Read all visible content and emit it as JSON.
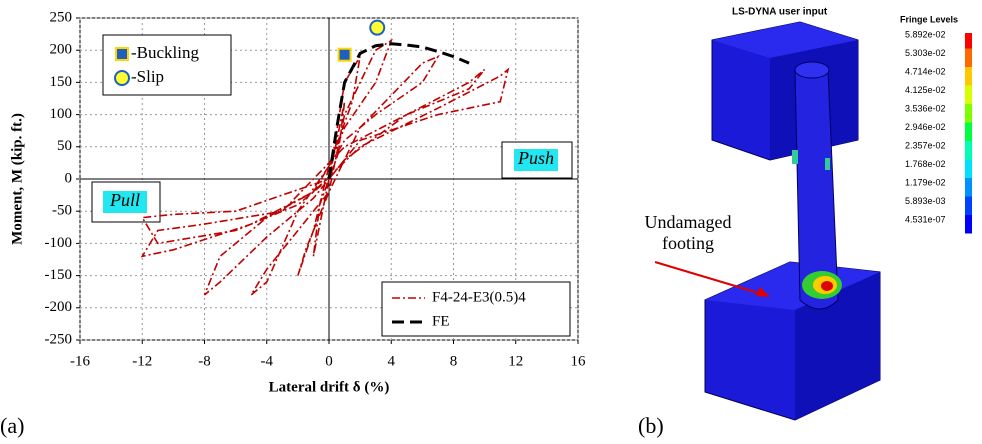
{
  "chart_data": {
    "type": "line",
    "xlabel": "Lateral drift δ (%)",
    "ylabel": "Moment, M (kip. ft.)",
    "xlim": [
      -16,
      16
    ],
    "xticks": [
      -16,
      -12,
      -8,
      -4,
      0,
      4,
      8,
      12,
      16
    ],
    "ylim": [
      -250,
      250
    ],
    "yticks": [
      -250,
      -200,
      -150,
      -100,
      -50,
      0,
      50,
      100,
      150,
      200,
      250
    ],
    "grid": true,
    "annotations": [
      "Push",
      "Pull"
    ],
    "series": [
      {
        "name": "F4-24-E3(0.5)4",
        "color": "#c00000",
        "line_style": "dashdot",
        "x": [
          0,
          0.5,
          1,
          0.6,
          0,
          -0.5,
          -1,
          -0.6,
          0,
          1,
          2,
          1.5,
          0,
          -1,
          -2,
          -1.5,
          0,
          1,
          3,
          4,
          3,
          1,
          0,
          -2,
          -4,
          -5,
          -4,
          -2,
          0,
          2,
          4,
          6,
          7,
          6,
          3,
          1,
          -1,
          -4,
          -7,
          -8,
          -7,
          -4,
          -1,
          1,
          5,
          9,
          10,
          9,
          5,
          1,
          -3,
          -8,
          -11,
          -12,
          -10,
          -5,
          -1,
          2,
          7,
          11,
          11.5,
          11,
          7,
          2,
          0,
          -6,
          -10,
          -12,
          -11,
          -6,
          -2,
          0
        ],
        "values": [
          0,
          60,
          120,
          40,
          0,
          -60,
          -120,
          -40,
          0,
          150,
          190,
          120,
          20,
          -80,
          -150,
          -110,
          -20,
          100,
          200,
          215,
          150,
          80,
          20,
          -50,
          -160,
          -180,
          -140,
          -80,
          -20,
          80,
          130,
          180,
          190,
          150,
          100,
          60,
          -20,
          -60,
          -120,
          -180,
          -160,
          -90,
          -30,
          30,
          100,
          150,
          170,
          140,
          100,
          50,
          -50,
          -70,
          -80,
          -120,
          -110,
          -70,
          -20,
          50,
          110,
          160,
          170,
          120,
          100,
          60,
          0,
          -50,
          -55,
          -60,
          -100,
          -80,
          -40,
          0
        ]
      },
      {
        "name": "FE",
        "color": "#000000",
        "line_style": "dashed",
        "x": [
          0,
          0.5,
          1,
          2,
          3,
          4,
          5,
          6,
          7,
          8,
          9
        ],
        "values": [
          0,
          80,
          150,
          195,
          207,
          210,
          208,
          205,
          198,
          190,
          180
        ]
      },
      {
        "name": "-Buckling",
        "color": "#1f5fbf",
        "edge_color": "#ffd700",
        "marker": "square",
        "x": [
          1
        ],
        "values": [
          193
        ]
      },
      {
        "name": "-Slip",
        "color": "#ffff33",
        "edge_color": "#1f5fbf",
        "marker": "circle",
        "x": [
          3.1
        ],
        "values": [
          235
        ]
      }
    ]
  },
  "panel_labels": [
    "(a)",
    "(b)"
  ],
  "fe_model": {
    "title": "LS-DYNA user input",
    "fringe_title": "Fringe Levels",
    "fringe_levels": [
      "5.892e-02",
      "5.303e-02",
      "4.714e-02",
      "4.125e-02",
      "3.536e-02",
      "2.946e-02",
      "2.357e-02",
      "1.768e-02",
      "1.179e-02",
      "5.893e-03",
      "4.531e-07"
    ],
    "annotation": [
      "Undamaged",
      "footing"
    ]
  }
}
